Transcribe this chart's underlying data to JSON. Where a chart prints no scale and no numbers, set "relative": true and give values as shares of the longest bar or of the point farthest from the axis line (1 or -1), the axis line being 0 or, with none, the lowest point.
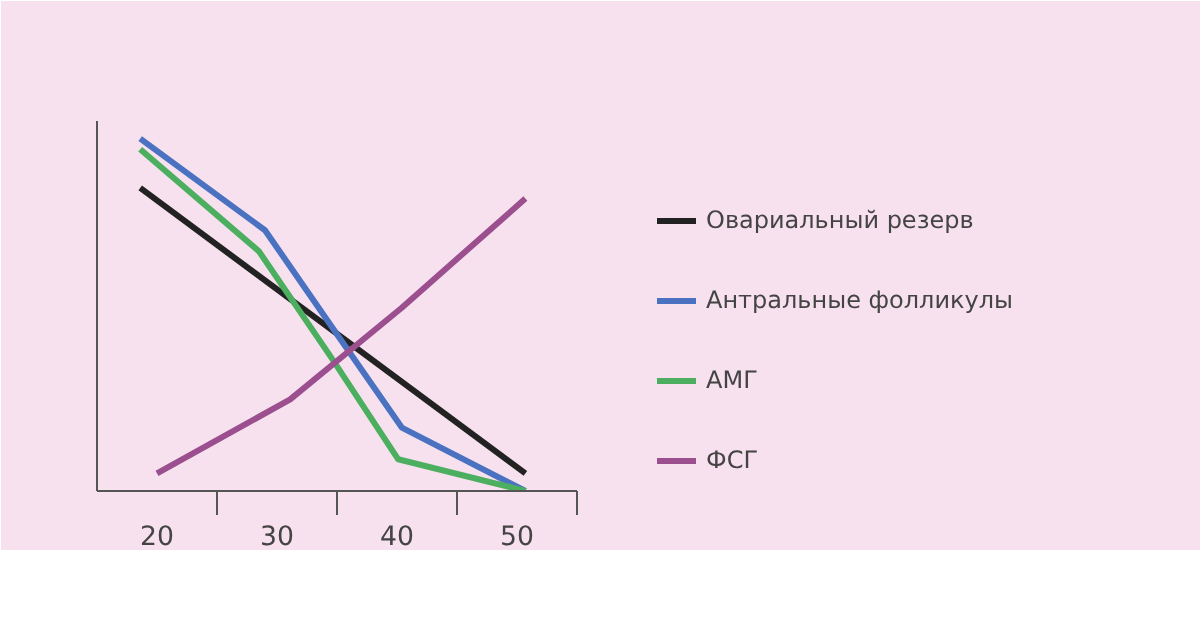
{
  "chart_data": {
    "type": "line",
    "relative": true,
    "grid": false,
    "legend": "right",
    "marker": "none",
    "line_style": "solid",
    "xlim": [
      15,
      55
    ],
    "xticks": [
      20,
      {
        "value": 25,
        "label": null
      },
      30,
      {
        "value": 35,
        "label": null
      },
      40,
      {
        "value": 45,
        "label": null
      },
      50,
      {
        "value": 55,
        "label": null
      }
    ],
    "series": [
      {
        "name": "Овариальный резерв",
        "color": "#222222",
        "x": [
          18.6,
          50.7
        ],
        "values": [
          0.86,
          0.05
        ]
      },
      {
        "name": "Антральные фолликулы",
        "color": "#4a72c0",
        "x": [
          18.6,
          29.0,
          35.3,
          40.4,
          50.7
        ],
        "values": [
          1,
          0.74,
          0.43,
          0.18,
          0
        ]
      },
      {
        "name": "АМГ",
        "color": "#4caf60",
        "x": [
          18.6,
          28.5,
          34.5,
          40.1,
          50.7
        ],
        "values": [
          0.97,
          0.68,
          0.38,
          0.09,
          0
        ]
      },
      {
        "name": "ФСГ",
        "color": "#9b4f8e",
        "x": [
          20,
          31.1,
          40.4,
          50.7
        ],
        "values": [
          0.05,
          0.26,
          0.52,
          0.83
        ]
      }
    ]
  }
}
